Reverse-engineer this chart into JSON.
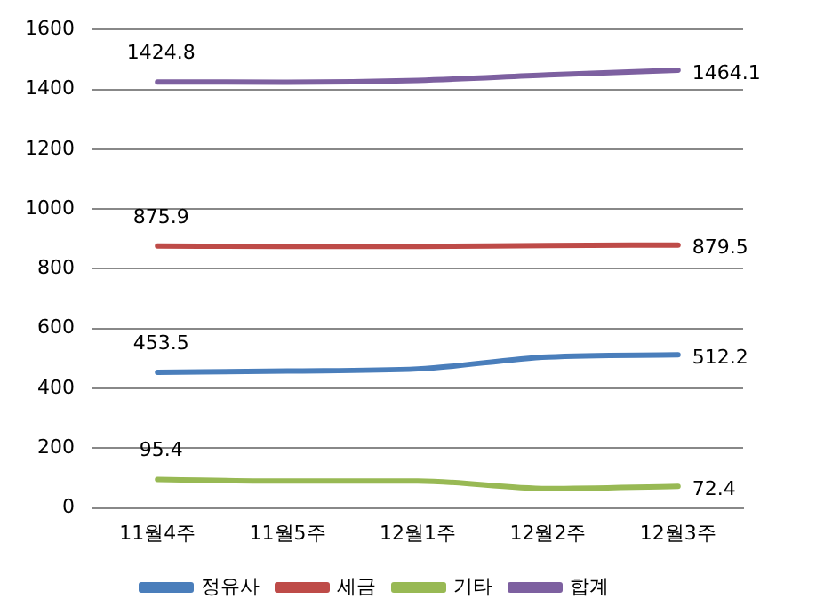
{
  "chart_data": {
    "type": "line",
    "categories": [
      "11월4주",
      "11월5주",
      "12월1주",
      "12월2주",
      "12월3주"
    ],
    "series": [
      {
        "name": "정유사",
        "color": "#4a7ebb",
        "values": [
          453.5,
          458,
          465,
          505,
          512.2
        ],
        "value_labels": [
          "453.5",
          null,
          null,
          null,
          "512.2"
        ]
      },
      {
        "name": "세금",
        "color": "#be4b48",
        "values": [
          875.9,
          875,
          875,
          878,
          879.5
        ],
        "value_labels": [
          "875.9",
          null,
          null,
          null,
          "879.5"
        ]
      },
      {
        "name": "기타",
        "color": "#98b954",
        "values": [
          95.4,
          90,
          90,
          65,
          72.4
        ],
        "value_labels": [
          "95.4",
          null,
          null,
          null,
          "72.4"
        ]
      },
      {
        "name": "합계",
        "color": "#7d60a0",
        "values": [
          1424.8,
          1424,
          1430,
          1448,
          1464.1
        ],
        "value_labels": [
          "1424.8",
          null,
          null,
          null,
          "1464.1"
        ]
      }
    ],
    "ylim": [
      0,
      1600
    ],
    "yticks": [
      0,
      200,
      400,
      600,
      800,
      1000,
      1200,
      1400,
      1600
    ],
    "grid": "y",
    "legend": "bottom",
    "marker": "none",
    "line_style": "solid"
  }
}
